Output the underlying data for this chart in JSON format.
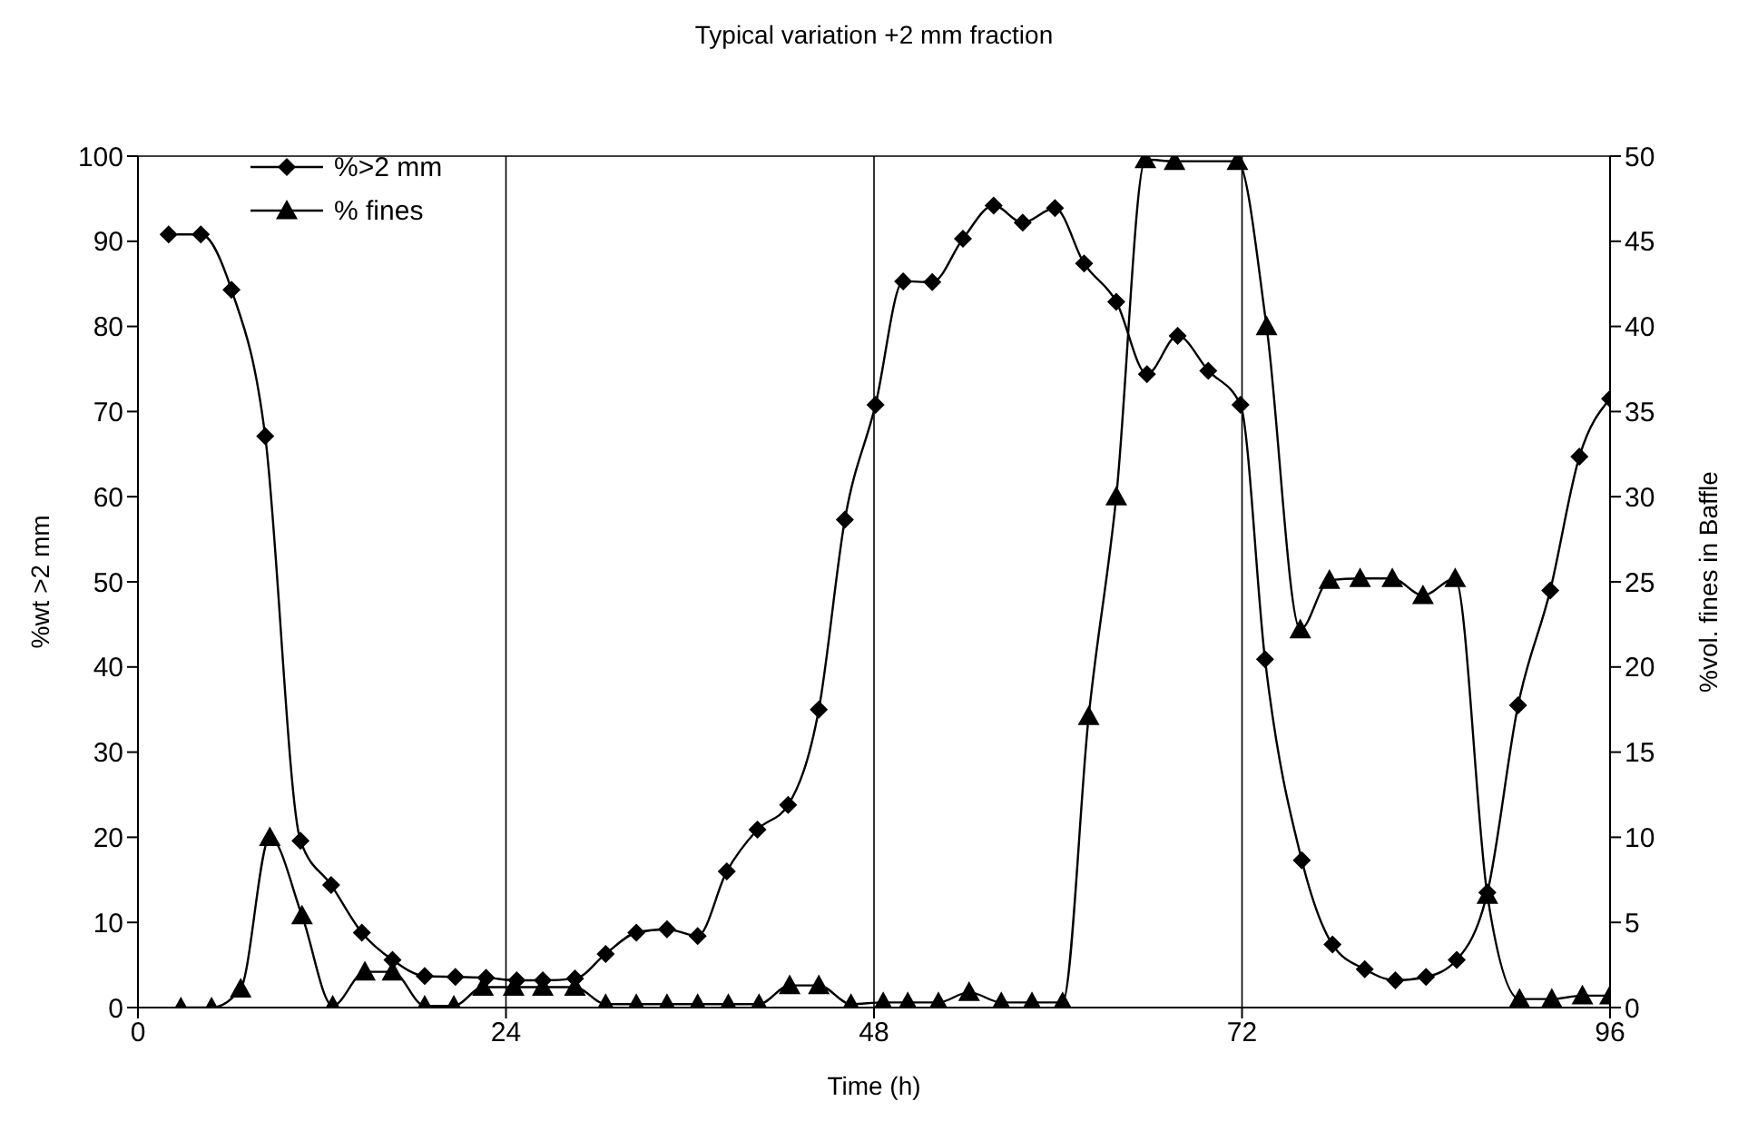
{
  "chart_data": {
    "type": "line",
    "title": "Typical variation +2 mm fraction",
    "xlabel": "Time (h)",
    "ylabel": "%wt >2 mm",
    "y2label": "%vol. fines in Baffle",
    "xlim": [
      0,
      96
    ],
    "xticks": [
      0,
      24,
      48,
      72,
      96
    ],
    "ylim": [
      0,
      100
    ],
    "yticks": [
      0,
      10,
      20,
      30,
      40,
      50,
      60,
      70,
      80,
      90,
      100
    ],
    "y2lim": [
      0,
      50
    ],
    "y2ticks": [
      0,
      5,
      10,
      15,
      20,
      25,
      30,
      35,
      40,
      45,
      50
    ],
    "grid": true,
    "legend": "top left",
    "line_style": "solid",
    "series": [
      {
        "name": "%>2 mm",
        "color": "#000000",
        "marker": "diamond",
        "x": [
          2.0,
          4.1,
          6.1,
          8.3,
          10.6,
          12.6,
          14.6,
          16.6,
          18.7,
          20.7,
          22.7,
          24.7,
          26.4,
          28.5,
          30.5,
          32.5,
          34.5,
          36.5,
          38.4,
          40.4,
          42.4,
          44.4,
          46.1,
          48.1,
          49.9,
          51.8,
          53.8,
          55.8,
          57.7,
          59.8,
          61.7,
          63.8,
          65.8,
          67.8,
          69.8,
          71.9,
          73.5,
          75.9,
          77.9,
          80.0,
          82.0,
          84.0,
          86.0,
          88.0,
          90.0,
          92.1,
          94.0,
          96.0
        ],
        "values": [
          90.8,
          90.8,
          84.3,
          67.1,
          19.6,
          14.4,
          8.8,
          5.6,
          3.7,
          3.6,
          3.5,
          3.2,
          3.2,
          3.4,
          6.3,
          8.8,
          9.2,
          8.4,
          16,
          20.9,
          23.8,
          35,
          57.3,
          70.8,
          85.3,
          85.2,
          90.3,
          94.2,
          92.2,
          93.9,
          87.4,
          82.9,
          74.4,
          78.9,
          74.8,
          70.8,
          40.9,
          17.3,
          7.4,
          4.5,
          3.2,
          3.6,
          5.6,
          13.5,
          35.5,
          49.0,
          64.7,
          71.5
        ]
      },
      {
        "name": "% fines",
        "color": "#000000",
        "marker": "triangle",
        "axis": "y2",
        "x": [
          2.8,
          4.8,
          6.7,
          8.6,
          10.7,
          12.7,
          14.8,
          16.6,
          18.7,
          20.6,
          22.5,
          24.5,
          26.4,
          28.5,
          30.5,
          32.5,
          34.5,
          36.5,
          38.5,
          40.5,
          42.5,
          44.4,
          46.5,
          48.6,
          50.2,
          52.2,
          54.2,
          56.3,
          58.3,
          60.3,
          62.0,
          63.8,
          65.7,
          67.6,
          71.7,
          73.6,
          75.8,
          77.7,
          79.7,
          81.8,
          83.8,
          85.9,
          88.0,
          90.1,
          92.2,
          94.2,
          96.0
        ],
        "values": [
          0,
          0,
          1.1,
          10.0,
          5.4,
          0.1,
          2.1,
          2.1,
          0.1,
          0.1,
          1.2,
          1.2,
          1.2,
          1.2,
          0.2,
          0.2,
          0.2,
          0.2,
          0.2,
          0.2,
          1.3,
          1.3,
          0.2,
          0.3,
          0.3,
          0.3,
          0.9,
          0.3,
          0.3,
          0.3,
          17.1,
          30,
          49.8,
          49.7,
          49.7,
          40,
          22.2,
          25.1,
          25.2,
          25.2,
          24.2,
          25.2,
          6.6,
          0.5,
          0.5,
          0.7,
          0.7
        ]
      }
    ]
  }
}
